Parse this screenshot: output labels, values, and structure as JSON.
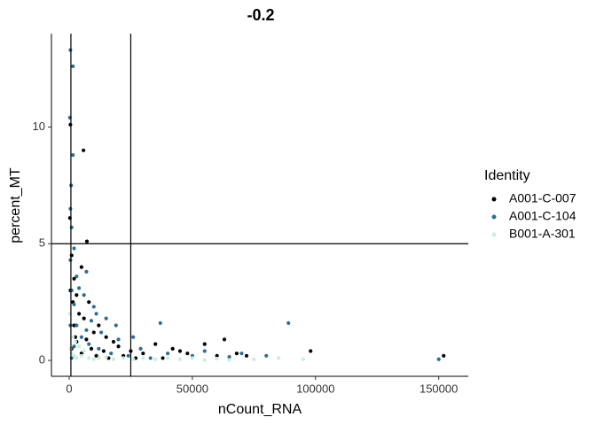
{
  "chart_data": {
    "type": "scatter",
    "title": "-0.2",
    "x_label": "nCount_RNA",
    "y_label": "percent_MT",
    "legend_title": "Identity",
    "legend": "right",
    "xlim": [
      -7200,
      162000
    ],
    "ylim": [
      -0.68,
      14
    ],
    "xticks": [
      0,
      50000,
      100000,
      150000
    ],
    "yticks": [
      0,
      5,
      10
    ],
    "vlines": [
      700,
      25000
    ],
    "hlines": [
      5
    ],
    "series": [
      {
        "name": "A001-C-007",
        "color": "#000000",
        "x": [
          500,
          5800,
          300,
          7200,
          1000,
          5000,
          2000,
          3000,
          8000,
          4000,
          12000,
          10000,
          15000,
          18000,
          20000,
          25000,
          30000,
          35000,
          42000,
          48000,
          55000,
          60000,
          63000,
          68000,
          72000,
          98000,
          152000,
          1000,
          2000,
          3000,
          5000,
          6000,
          9000,
          11000,
          14000,
          16000,
          22000,
          27000,
          38000,
          45000,
          1500,
          500,
          2500,
          7000
        ],
        "values": [
          10.1,
          9.0,
          6.1,
          5.1,
          4.5,
          4.0,
          3.5,
          2.8,
          2.5,
          2.0,
          1.5,
          1.2,
          1.0,
          0.8,
          0.6,
          0.4,
          0.3,
          0.7,
          0.5,
          0.3,
          0.7,
          0.2,
          0.9,
          0.3,
          0.2,
          0.4,
          0.2,
          0.5,
          1.5,
          0.8,
          0.3,
          1.8,
          0.5,
          0.2,
          0.4,
          0.1,
          0.2,
          0.1,
          0.1,
          0.4,
          2.5,
          3.0,
          1.0,
          0.9
        ]
      },
      {
        "name": "A001-C-104",
        "color": "#2d6e96",
        "x": [
          500,
          1500,
          300,
          1500,
          800,
          500,
          1000,
          2000,
          500,
          3000,
          7000,
          4000,
          6000,
          10000,
          11000,
          15000,
          19000,
          13000,
          26000,
          37000,
          29000,
          40000,
          50000,
          55000,
          65000,
          70000,
          80000,
          89000,
          150000,
          2000,
          3000,
          5000,
          8000,
          12000,
          17000,
          20000,
          24000,
          33000,
          1000,
          500,
          1000,
          2000,
          7000,
          9000
        ],
        "values": [
          13.3,
          12.6,
          10.4,
          8.8,
          7.5,
          6.5,
          5.7,
          4.8,
          4.3,
          3.6,
          3.8,
          3.1,
          2.8,
          2.3,
          2.0,
          1.8,
          1.5,
          1.2,
          1.0,
          1.6,
          0.5,
          0.3,
          0.2,
          0.4,
          0.15,
          0.3,
          0.2,
          1.6,
          0.05,
          2.4,
          1.5,
          1.0,
          0.7,
          0.5,
          0.3,
          0.9,
          0.2,
          0.1,
          0.1,
          1.5,
          3.0,
          0.6,
          1.3,
          1.7
        ]
      },
      {
        "name": "B001-A-301",
        "color": "#c6f0dc",
        "x": [
          500,
          1000,
          2000,
          3000,
          5000,
          8000,
          10000,
          12000,
          15000,
          18000,
          22000,
          26000,
          30000,
          35000,
          40000,
          45000,
          50000,
          55000,
          60000,
          65000,
          75000,
          85000,
          95000,
          4000,
          6000,
          1500,
          300,
          2500
        ],
        "values": [
          0.5,
          0.3,
          0.2,
          0.1,
          0.2,
          0.1,
          0.05,
          0.1,
          0.15,
          0.05,
          0.1,
          0.05,
          0.1,
          0.05,
          0.1,
          0.05,
          0.1,
          0.02,
          0.08,
          0.02,
          0.05,
          0.1,
          0.05,
          0.6,
          0.4,
          1.0,
          2.0,
          0.8
        ]
      }
    ]
  }
}
